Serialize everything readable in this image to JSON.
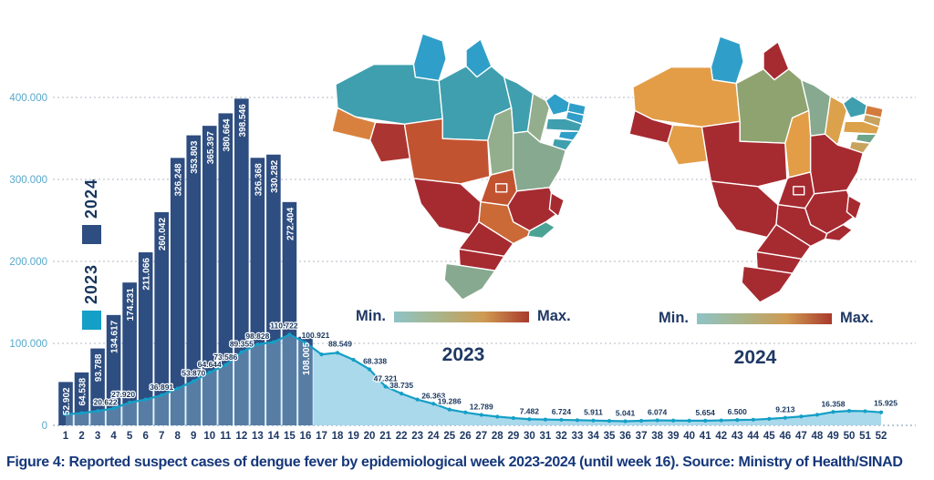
{
  "figure": {
    "caption": "Figure 4: Reported suspect cases of dengue fever by epidemiological week 2023-2024 (until week 16). Source: Ministry of Health/SINAD"
  },
  "legend": {
    "year_2024": {
      "label": "2024",
      "color": "#2e4d80"
    },
    "year_2023": {
      "label": "2023",
      "color": "#149fc6"
    }
  },
  "maps": {
    "min_label": "Min.",
    "max_label": "Max.",
    "gradient": [
      "#8fc3c6",
      "#a8b489",
      "#cf9a52",
      "#a93a2c"
    ],
    "map_2023": {
      "title": "2023",
      "state_colors": {
        "RR": "#2f9fc9",
        "AP": "#2f9fc9",
        "AM": "#3f9fae",
        "PA": "#3f9fae",
        "AC": "#d8813e",
        "RO": "#ab3530",
        "MT": "#c25331",
        "MA": "#3f9fae",
        "TO": "#93ae8d",
        "PI": "#93ae8d",
        "CE": "#2f9fc9",
        "RN": "#2f9fc9",
        "PB": "#2f9fc9",
        "PE": "#3f9fae",
        "AL": "#2f9fc9",
        "SE": "#3f9fae",
        "BA": "#87a98f",
        "GO": "#c25331",
        "DF": "#c25331",
        "MG": "#a62b31",
        "ES": "#a62b31",
        "RJ": "#4ba394",
        "SP": "#cb6a37",
        "MS": "#a62b31",
        "PR": "#a62b31",
        "SC": "#a62b31",
        "RS": "#87a98f"
      }
    },
    "map_2024": {
      "title": "2024",
      "state_colors": {
        "RR": "#2f9fc9",
        "AP": "#a62b31",
        "AM": "#e39d47",
        "PA": "#8fa370",
        "AC": "#a62b31",
        "RO": "#e39d47",
        "MT": "#a62b31",
        "MA": "#87a98f",
        "TO": "#e39d47",
        "PI": "#dba14b",
        "CE": "#3f9fae",
        "RN": "#d37b3d",
        "PB": "#c8a35e",
        "PE": "#dba14b",
        "AL": "#6fa58a",
        "SE": "#c8a35e",
        "BA": "#a62b31",
        "GO": "#a62b31",
        "DF": "#a62b31",
        "MG": "#a62b31",
        "ES": "#a62b31",
        "RJ": "#a62b31",
        "SP": "#a62b31",
        "MS": "#a62b31",
        "PR": "#a62b31",
        "SC": "#a62b31",
        "RS": "#a62b31"
      }
    }
  },
  "chart_data": {
    "type": "combo",
    "title": "Reported suspect cases of dengue fever by epidemiological week 2023-2024 (until week 16)",
    "ylim": [
      0,
      400000
    ],
    "grid": true,
    "yticks": [
      {
        "value": 0,
        "label": "0"
      },
      {
        "value": 100000,
        "label": "100.000"
      },
      {
        "value": 200000,
        "label": "200.000"
      },
      {
        "value": 300000,
        "label": "300.000"
      },
      {
        "value": 400000,
        "label": "400.000"
      }
    ],
    "xticks": [
      "1",
      "2",
      "3",
      "4",
      "5",
      "6",
      "7",
      "8",
      "9",
      "10",
      "11",
      "12",
      "13",
      "14",
      "15",
      "16",
      "17",
      "18",
      "19",
      "20",
      "21",
      "22",
      "23",
      "24",
      "25",
      "26",
      "27",
      "28",
      "29",
      "30",
      "31",
      "32",
      "33",
      "34",
      "35",
      "36",
      "37",
      "38",
      "39",
      "40",
      "41",
      "42",
      "43",
      "44",
      "45",
      "46",
      "47",
      "48",
      "49",
      "50",
      "51",
      "52"
    ],
    "series": [
      {
        "name": "2024",
        "type": "bar",
        "color": "#2e4d80",
        "weeks": [
          1,
          2,
          3,
          4,
          5,
          6,
          7,
          8,
          9,
          10,
          11,
          12,
          13,
          14,
          15,
          16
        ],
        "values": [
          52902,
          64538,
          93788,
          134617,
          174231,
          211066,
          260042,
          326248,
          353803,
          365397,
          380664,
          398546,
          326368,
          330282,
          272404,
          108005
        ],
        "labels": [
          "52.902",
          "64.538",
          "93.788",
          "134.617",
          "174.231",
          "211.066",
          "260.042",
          "326.248",
          "353.803",
          "365.397",
          "380.664",
          "398.546",
          "326.368",
          "330.282",
          "272.404",
          "108.005"
        ]
      },
      {
        "name": "2023",
        "type": "area-line",
        "color": "#149fc6",
        "fill": "#a5d7eb",
        "values": [
          13500,
          15000,
          17500,
          20622,
          27920,
          31500,
          36891,
          45000,
          53870,
          64644,
          73586,
          89355,
          98828,
          101500,
          110722,
          100921,
          86500,
          88549,
          80000,
          68338,
          47321,
          38735,
          31500,
          26363,
          19286,
          15800,
          12789,
          10600,
          8900,
          7482,
          7050,
          6724,
          6300,
          5911,
          5450,
          5041,
          5550,
          6074,
          5850,
          5700,
          5654,
          6050,
          6500,
          6900,
          7900,
          9213,
          10800,
          12900,
          16358,
          17600,
          17300,
          15925
        ],
        "point_labels": [
          {
            "week": 4,
            "label": "20.622"
          },
          {
            "week": 5,
            "label": "27.920"
          },
          {
            "week": 7,
            "label": "36.891"
          },
          {
            "week": 9,
            "label": "53.870"
          },
          {
            "week": 10,
            "label": "64.644"
          },
          {
            "week": 11,
            "label": "73.586"
          },
          {
            "week": 12,
            "label": "89.355"
          },
          {
            "week": 13,
            "label": "98.828"
          },
          {
            "week": 15,
            "label": "110.722"
          },
          {
            "week": 16,
            "label": "100.921"
          },
          {
            "week": 18,
            "label": "88.549"
          },
          {
            "week": 20,
            "label": "68.338"
          },
          {
            "week": 21,
            "label": "47.321"
          },
          {
            "week": 22,
            "label": "38.735"
          },
          {
            "week": 24,
            "label": "26.363"
          },
          {
            "week": 25,
            "label": "19.286"
          },
          {
            "week": 27,
            "label": "12.789"
          },
          {
            "week": 30,
            "label": "7.482"
          },
          {
            "week": 32,
            "label": "6.724"
          },
          {
            "week": 34,
            "label": "5.911"
          },
          {
            "week": 36,
            "label": "5.041"
          },
          {
            "week": 38,
            "label": "6.074"
          },
          {
            "week": 41,
            "label": "5.654"
          },
          {
            "week": 43,
            "label": "6.500"
          },
          {
            "week": 46,
            "label": "9.213"
          },
          {
            "week": 49,
            "label": "16.358"
          },
          {
            "week": 52,
            "label": "15.925"
          }
        ]
      }
    ]
  }
}
